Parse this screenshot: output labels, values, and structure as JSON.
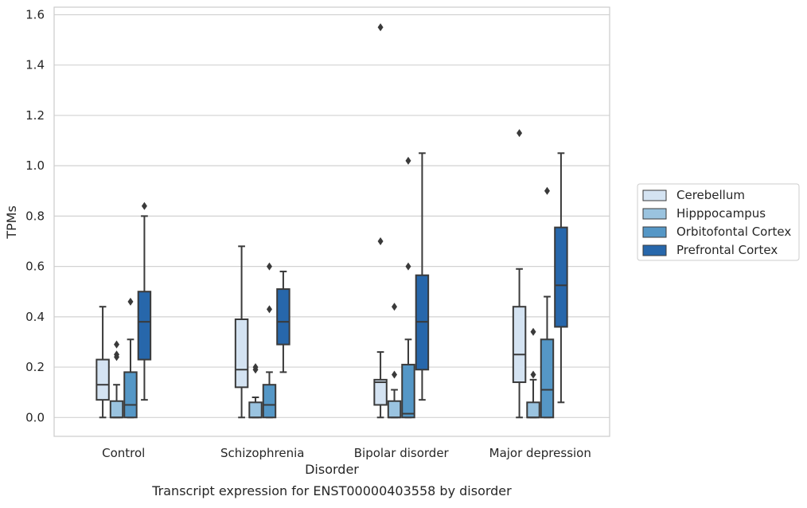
{
  "chart_data": {
    "type": "box",
    "title": "",
    "caption": "Transcript expression for ENST00000403558 by disorder",
    "xlabel": "Disorder",
    "ylabel": "TPMs",
    "ylim": [
      -0.075,
      1.63
    ],
    "yticks": [
      "0.0",
      "0.2",
      "0.4",
      "0.6",
      "0.8",
      "1.0",
      "1.2",
      "1.4",
      "1.6"
    ],
    "ytick_values": [
      0.0,
      0.2,
      0.4,
      0.6,
      0.8,
      1.0,
      1.2,
      1.4,
      1.6
    ],
    "grid": true,
    "legend_position": "right",
    "categories": [
      "Control",
      "Schizophrenia",
      "Bipolar disorder",
      "Major depression"
    ],
    "series": [
      {
        "name": "Cerebellum",
        "color": "#d4e3f2",
        "boxes": [
          {
            "whislo": 0.0,
            "q1": 0.07,
            "med": 0.13,
            "q3": 0.23,
            "whishi": 0.44,
            "fliers": []
          },
          {
            "whislo": 0.0,
            "q1": 0.12,
            "med": 0.19,
            "q3": 0.39,
            "whishi": 0.68,
            "fliers": []
          },
          {
            "whislo": 0.0,
            "q1": 0.05,
            "med": 0.14,
            "q3": 0.15,
            "whishi": 0.26,
            "fliers": [
              0.7,
              1.55
            ]
          },
          {
            "whislo": 0.0,
            "q1": 0.14,
            "med": 0.25,
            "q3": 0.44,
            "whishi": 0.59,
            "fliers": [
              1.13
            ]
          }
        ]
      },
      {
        "name": "Hipppocampus",
        "color": "#9ac3df",
        "boxes": [
          {
            "whislo": 0.0,
            "q1": 0.0,
            "med": 0.0,
            "q3": 0.065,
            "whishi": 0.13,
            "fliers": [
              0.24,
              0.25,
              0.29
            ]
          },
          {
            "whislo": 0.0,
            "q1": 0.0,
            "med": 0.0,
            "q3": 0.06,
            "whishi": 0.08,
            "fliers": [
              0.19,
              0.2
            ]
          },
          {
            "whislo": 0.0,
            "q1": 0.0,
            "med": 0.0,
            "q3": 0.065,
            "whishi": 0.11,
            "fliers": [
              0.17,
              0.44
            ]
          },
          {
            "whislo": 0.0,
            "q1": 0.0,
            "med": 0.0,
            "q3": 0.06,
            "whishi": 0.15,
            "fliers": [
              0.17,
              0.34
            ]
          }
        ]
      },
      {
        "name": "Orbitofontal Cortex",
        "color": "#5597c6",
        "boxes": [
          {
            "whislo": 0.0,
            "q1": 0.0,
            "med": 0.05,
            "q3": 0.18,
            "whishi": 0.31,
            "fliers": [
              0.46
            ]
          },
          {
            "whislo": 0.0,
            "q1": 0.0,
            "med": 0.05,
            "q3": 0.13,
            "whishi": 0.18,
            "fliers": [
              0.43,
              0.6
            ]
          },
          {
            "whislo": 0.0,
            "q1": 0.0,
            "med": 0.015,
            "q3": 0.21,
            "whishi": 0.31,
            "fliers": [
              0.6,
              1.02
            ]
          },
          {
            "whislo": 0.0,
            "q1": 0.0,
            "med": 0.11,
            "q3": 0.31,
            "whishi": 0.48,
            "fliers": [
              0.9
            ]
          }
        ]
      },
      {
        "name": "Prefrontal Cortex",
        "color": "#2767ab",
        "boxes": [
          {
            "whislo": 0.07,
            "q1": 0.23,
            "med": 0.38,
            "q3": 0.5,
            "whishi": 0.8,
            "fliers": [
              0.84
            ]
          },
          {
            "whislo": 0.18,
            "q1": 0.29,
            "med": 0.38,
            "q3": 0.51,
            "whishi": 0.58,
            "fliers": []
          },
          {
            "whislo": 0.07,
            "q1": 0.19,
            "med": 0.38,
            "q3": 0.565,
            "whishi": 1.05,
            "fliers": []
          },
          {
            "whislo": 0.06,
            "q1": 0.36,
            "med": 0.525,
            "q3": 0.755,
            "whishi": 1.05,
            "fliers": []
          }
        ]
      }
    ]
  }
}
